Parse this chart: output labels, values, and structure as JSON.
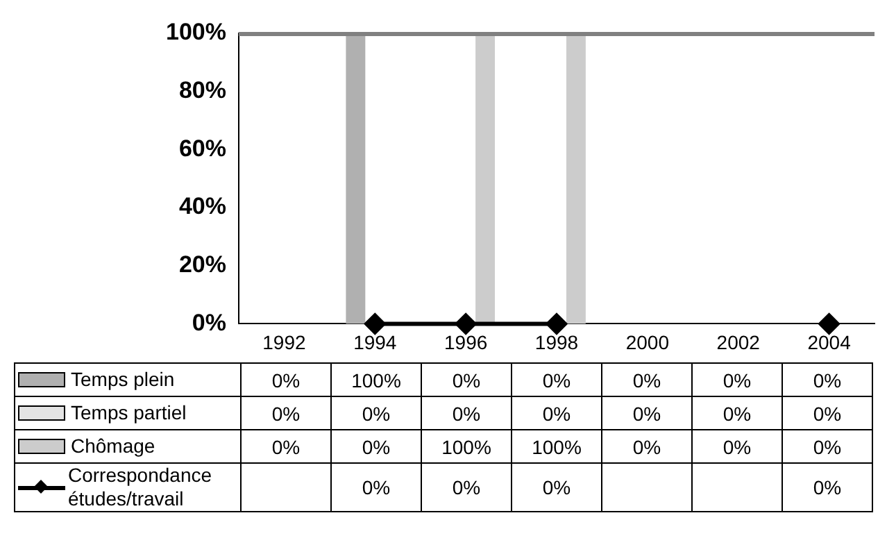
{
  "chart_data": {
    "type": "bar",
    "categories": [
      "1992",
      "1994",
      "1996",
      "1998",
      "2000",
      "2002",
      "2004"
    ],
    "series": [
      {
        "name": "Temps plein",
        "color": "#b0b0b0",
        "values": [
          0,
          100,
          0,
          0,
          0,
          0,
          0
        ],
        "value_labels": [
          "0%",
          "100%",
          "0%",
          "0%",
          "0%",
          "0%",
          "0%"
        ]
      },
      {
        "name": "Temps partiel",
        "color": "#e4e4e4",
        "values": [
          0,
          0,
          0,
          0,
          0,
          0,
          0
        ],
        "value_labels": [
          "0%",
          "0%",
          "0%",
          "0%",
          "0%",
          "0%",
          "0%"
        ]
      },
      {
        "name": "Chômage",
        "color": "#cccccc",
        "values": [
          0,
          0,
          100,
          100,
          0,
          0,
          0
        ],
        "value_labels": [
          "0%",
          "0%",
          "100%",
          "100%",
          "0%",
          "0%",
          "0%"
        ]
      },
      {
        "name": "Correspondance études/travail",
        "type": "line",
        "color": "#000000",
        "marker": "diamond",
        "values": [
          null,
          0,
          0,
          0,
          null,
          null,
          0
        ],
        "value_labels": [
          null,
          "0%",
          "0%",
          "0%",
          null,
          null,
          "0%"
        ]
      }
    ],
    "ylim": [
      0,
      100
    ],
    "yticks": [
      {
        "value": 0,
        "label": "0%"
      },
      {
        "value": 20,
        "label": "20%"
      },
      {
        "value": 40,
        "label": "40%"
      },
      {
        "value": 60,
        "label": "60%"
      },
      {
        "value": 80,
        "label": "80%"
      },
      {
        "value": 100,
        "label": "100%"
      }
    ],
    "grid": false,
    "legend": "bottom"
  }
}
